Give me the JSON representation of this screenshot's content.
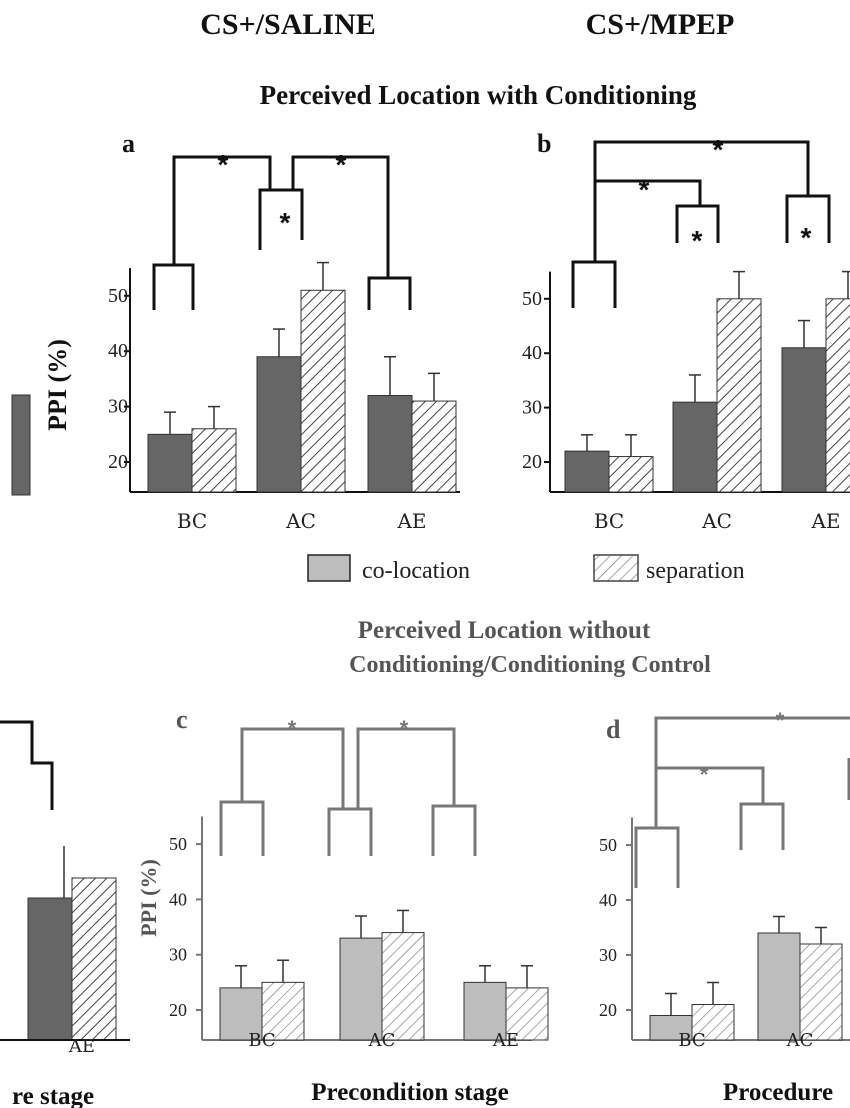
{
  "header": {
    "left": "CS+/SALINE",
    "right": "CS+/MPEP"
  },
  "section1_title": "Perceived Location with Conditioning",
  "section2_title_line1": "Perceived Location without",
  "section2_title_line2": "Conditioning/Conditioning Control",
  "legend": {
    "colocation": "co-location",
    "separation": "separation"
  },
  "colors": {
    "dark_bar": "#666666",
    "light_bar": "#bdbdbd",
    "hatch": "#555555",
    "stroke_dark": "#111111",
    "stroke_grey": "#666666"
  },
  "chart_data": [
    {
      "panel": "a",
      "type": "bar",
      "categories": [
        "BC",
        "AC",
        "AE"
      ],
      "ylabel": "PPI (%)",
      "yticks": [
        20,
        30,
        40,
        50
      ],
      "series": [
        {
          "name": "co-location",
          "values": [
            25,
            39,
            32
          ],
          "errors": [
            4,
            5,
            7
          ]
        },
        {
          "name": "separation",
          "values": [
            26,
            51,
            31
          ],
          "errors": [
            4,
            5,
            5
          ]
        }
      ],
      "significance": [
        "*",
        "*",
        "*"
      ]
    },
    {
      "panel": "b",
      "type": "bar",
      "categories": [
        "BC",
        "AC",
        "AE"
      ],
      "ylabel": "PPI (%)",
      "yticks": [
        20,
        30,
        40,
        50
      ],
      "series": [
        {
          "name": "co-location",
          "values": [
            22,
            31,
            41
          ],
          "errors": [
            3,
            5,
            5
          ]
        },
        {
          "name": "separation",
          "values": [
            21,
            50,
            50
          ],
          "errors": [
            4,
            5,
            5
          ]
        }
      ],
      "significance": [
        "*",
        "*",
        "*",
        "*"
      ]
    },
    {
      "panel": "c",
      "type": "bar",
      "categories": [
        "BC",
        "AC",
        "AE"
      ],
      "ylabel": "PPI (%)",
      "yticks": [
        20,
        30,
        40,
        50
      ],
      "xlabel": "Precondition stage",
      "series": [
        {
          "name": "co-location",
          "values": [
            24,
            33,
            25
          ],
          "errors": [
            4,
            4,
            3
          ]
        },
        {
          "name": "separation",
          "values": [
            25,
            34,
            24
          ],
          "errors": [
            4,
            4,
            4
          ]
        }
      ],
      "significance": [
        "*",
        "*"
      ]
    },
    {
      "panel": "d",
      "type": "bar",
      "categories": [
        "BC",
        "AC"
      ],
      "ylabel": "PPI (%)",
      "yticks": [
        20,
        30,
        40,
        50
      ],
      "xlabel": "Procedure",
      "series": [
        {
          "name": "co-location",
          "values": [
            19,
            34
          ],
          "errors": [
            4,
            3
          ]
        },
        {
          "name": "separation",
          "values": [
            21,
            32
          ],
          "errors": [
            4,
            3
          ]
        }
      ],
      "significance": [
        "*",
        "*"
      ]
    }
  ],
  "left_fragment": {
    "category": "AE",
    "xlabel": "re stage",
    "ylabel": "PPI (%)"
  }
}
